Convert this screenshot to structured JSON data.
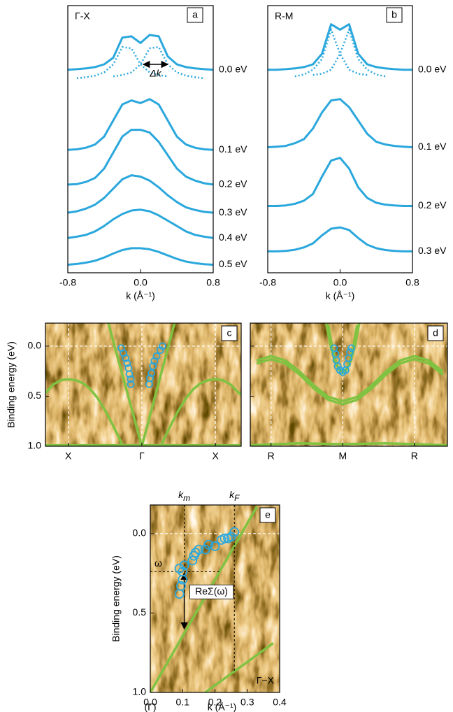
{
  "chart_data": [
    {
      "type": "line",
      "panel": "a",
      "title": "Γ-X",
      "xlabel": "k (Å⁻¹)",
      "xlim": [
        -0.8,
        0.8
      ],
      "xticks": [
        -0.8,
        {
          "value": 0,
          "label": "0.0"
        },
        0.8
      ],
      "ylim": [
        0,
        10
      ],
      "x": [
        -0.8,
        -0.7,
        -0.6,
        -0.5,
        -0.4,
        -0.3,
        -0.2,
        -0.1,
        0,
        0.1,
        0.2,
        0.3,
        0.4,
        0.5,
        0.6,
        0.7,
        0.8
      ],
      "series": [
        {
          "name": "0.0 eV",
          "color": "#2aa7dc",
          "values": [
            7.6,
            7.62,
            7.65,
            7.7,
            7.8,
            8.05,
            8.8,
            8.85,
            8.6,
            8.9,
            8.85,
            8.1,
            7.8,
            7.7,
            7.65,
            7.62,
            7.6
          ]
        },
        {
          "name": "0.1 eV",
          "color": "#2aa7dc",
          "values": [
            4.6,
            4.62,
            4.68,
            4.8,
            5.1,
            5.7,
            6.3,
            6.45,
            6.35,
            6.5,
            6.3,
            5.7,
            5.1,
            4.8,
            4.68,
            4.62,
            4.6
          ]
        },
        {
          "name": "0.2 eV",
          "color": "#2aa7dc",
          "values": [
            3.3,
            3.32,
            3.4,
            3.55,
            3.9,
            4.5,
            5.1,
            5.35,
            5.35,
            5.25,
            4.9,
            4.4,
            3.9,
            3.6,
            3.45,
            3.35,
            3.3
          ]
        },
        {
          "name": "0.3 eV",
          "color": "#2aa7dc",
          "values": [
            2.25,
            2.3,
            2.4,
            2.55,
            2.8,
            3.15,
            3.5,
            3.65,
            3.6,
            3.45,
            3.2,
            2.9,
            2.65,
            2.45,
            2.35,
            2.28,
            2.25
          ]
        },
        {
          "name": "0.4 eV",
          "color": "#2aa7dc",
          "values": [
            1.3,
            1.35,
            1.42,
            1.55,
            1.75,
            2.0,
            2.2,
            2.33,
            2.36,
            2.3,
            2.15,
            1.95,
            1.75,
            1.55,
            1.42,
            1.35,
            1.3
          ]
        },
        {
          "name": "0.5 eV",
          "color": "#2aa7dc",
          "values": [
            0.3,
            0.33,
            0.38,
            0.45,
            0.57,
            0.72,
            0.85,
            0.92,
            0.92,
            0.88,
            0.78,
            0.65,
            0.52,
            0.42,
            0.36,
            0.32,
            0.3
          ]
        }
      ],
      "components": [
        {
          "color": "#2aa7dc",
          "values": [
            null,
            7.28,
            7.32,
            7.38,
            7.5,
            7.8,
            8.45,
            8.4,
            7.8,
            7.5,
            7.4,
            7.35,
            null,
            null,
            null,
            null,
            null
          ]
        },
        {
          "color": "#2aa7dc",
          "values": [
            null,
            null,
            null,
            null,
            null,
            7.35,
            7.4,
            7.5,
            7.8,
            8.4,
            8.45,
            7.8,
            7.5,
            7.38,
            7.32,
            7.28,
            null
          ]
        }
      ],
      "arrow": {
        "label": "Δk",
        "x": [
          0.03,
          0.3
        ],
        "y": 7.8
      }
    },
    {
      "type": "line",
      "panel": "b",
      "title": "R-M",
      "xlabel": "k (Å⁻¹)",
      "xlim": [
        -0.8,
        0.8
      ],
      "xticks": [
        -0.8,
        {
          "value": 0,
          "label": "0.0"
        },
        0.8
      ],
      "ylim": [
        0,
        10
      ],
      "x": [
        -0.8,
        -0.7,
        -0.6,
        -0.5,
        -0.4,
        -0.3,
        -0.2,
        -0.1,
        0,
        0.1,
        0.2,
        0.3,
        0.4,
        0.5,
        0.6,
        0.7,
        0.8
      ],
      "series": [
        {
          "name": "0.0 eV",
          "color": "#2aa7dc",
          "values": [
            7.6,
            7.6,
            7.62,
            7.65,
            7.7,
            7.8,
            8.2,
            9.3,
            9.1,
            9.3,
            8.2,
            7.8,
            7.7,
            7.65,
            7.62,
            7.6,
            7.6
          ]
        },
        {
          "name": "0.1 eV",
          "color": "#2aa7dc",
          "values": [
            4.7,
            4.72,
            4.75,
            4.85,
            5.0,
            5.4,
            6.0,
            6.45,
            6.5,
            6.2,
            5.7,
            5.2,
            4.9,
            4.8,
            4.75,
            4.72,
            4.7
          ]
        },
        {
          "name": "0.2 eV",
          "color": "#2aa7dc",
          "values": [
            2.5,
            2.5,
            2.52,
            2.58,
            2.7,
            2.95,
            3.6,
            4.2,
            4.3,
            3.9,
            3.2,
            2.8,
            2.62,
            2.55,
            2.52,
            2.5,
            2.5
          ]
        },
        {
          "name": "0.3 eV",
          "color": "#2aa7dc",
          "values": [
            0.8,
            0.8,
            0.82,
            0.86,
            0.95,
            1.1,
            1.4,
            1.65,
            1.7,
            1.6,
            1.3,
            1.05,
            0.92,
            0.85,
            0.82,
            0.8,
            0.8
          ]
        }
      ],
      "components": [
        {
          "color": "#2aa7dc",
          "values": [
            null,
            null,
            null,
            7.35,
            7.42,
            7.6,
            8.0,
            9.1,
            8.2,
            7.6,
            7.45,
            7.4,
            null,
            null,
            null,
            null,
            null
          ]
        },
        {
          "color": "#2aa7dc",
          "values": [
            null,
            null,
            null,
            null,
            null,
            7.4,
            7.45,
            7.6,
            8.2,
            9.1,
            8.0,
            7.6,
            7.42,
            7.35,
            null,
            null,
            null
          ]
        }
      ]
    },
    {
      "type": "map",
      "panel": "c",
      "ylabel": "Binding energy (eV)",
      "xlim": [
        -1.31,
        1.35
      ],
      "xticks": [
        {
          "value": -1,
          "label": "X"
        },
        {
          "value": 0,
          "label": "Γ"
        },
        {
          "value": 1,
          "label": "X"
        }
      ],
      "ylim": [
        -0.23,
        1.0
      ],
      "y_inverted": true,
      "yticks": [
        {
          "value": 0,
          "label": "0.0"
        },
        0.5,
        {
          "value": 1,
          "label": "1.0"
        }
      ],
      "grid": true,
      "lines": [
        {
          "color": "#80c241",
          "x": [
            0,
            -0.455
          ],
          "values": [
            1.0,
            -0.23
          ]
        },
        {
          "color": "#80c241",
          "x": [
            0,
            0.445
          ],
          "values": [
            1.0,
            -0.23
          ]
        },
        {
          "color": "#80c241",
          "x": [
            -1.31,
            -1.2,
            -1.1,
            -1.0,
            -0.9,
            -0.8,
            -0.7,
            -0.6,
            -0.5,
            -0.4,
            -0.3,
            -0.26
          ],
          "values": [
            0.47,
            0.38,
            0.34,
            0.33,
            0.34,
            0.37,
            0.43,
            0.52,
            0.64,
            0.78,
            0.93,
            1.0
          ]
        },
        {
          "color": "#80c241",
          "x": [
            0.26,
            0.3,
            0.4,
            0.5,
            0.6,
            0.7,
            0.8,
            0.9,
            1.0,
            1.1,
            1.2,
            1.35
          ],
          "values": [
            1.0,
            0.93,
            0.78,
            0.64,
            0.52,
            0.43,
            0.37,
            0.34,
            0.33,
            0.34,
            0.38,
            0.49
          ]
        },
        {
          "color": "#80c241",
          "x": [
            -1.31,
            1.35
          ],
          "values": [
            0.99,
            0.99
          ]
        }
      ],
      "points": {
        "color": "#2aa7dc",
        "x": [
          -0.28,
          -0.25,
          -0.22,
          -0.2,
          -0.18,
          -0.17,
          -0.15,
          -0.15,
          0.1,
          0.11,
          0.13,
          0.15,
          0.17,
          0.2,
          0.25,
          0.28
        ],
        "values": [
          0.02,
          0.07,
          0.12,
          0.17,
          0.22,
          0.28,
          0.33,
          0.38,
          0.38,
          0.32,
          0.27,
          0.2,
          0.15,
          0.1,
          0.04,
          0.0
        ]
      }
    },
    {
      "type": "map",
      "panel": "d",
      "xlim": [
        -1.29,
        1.46
      ],
      "xticks": [
        {
          "value": -1,
          "label": "R"
        },
        {
          "value": 0,
          "label": "M"
        },
        {
          "value": 1,
          "label": "R"
        }
      ],
      "ylim": [
        -0.23,
        1.0
      ],
      "y_inverted": true,
      "yticks": [
        0,
        0.5,
        1
      ],
      "hide_ytick_labels": true,
      "grid": true,
      "lines": [
        {
          "color": "#80c241",
          "x": [
            -1.2,
            -1.0,
            -0.8,
            -0.6,
            -0.4,
            -0.2,
            0,
            0.2,
            0.4,
            0.6,
            0.8,
            1.0,
            1.2,
            1.4
          ],
          "values": [
            0.143,
            0.1,
            0.143,
            0.255,
            0.395,
            0.507,
            0.55,
            0.507,
            0.395,
            0.255,
            0.143,
            0.1,
            0.143,
            0.255
          ]
        },
        {
          "color": "#80c241",
          "x": [
            -1.2,
            -1.0,
            -0.8,
            -0.6,
            -0.4,
            -0.2,
            0,
            0.2,
            0.4,
            0.6,
            0.8,
            1.0,
            1.2,
            1.4
          ],
          "values": [
            0.173,
            0.13,
            0.173,
            0.285,
            0.425,
            0.537,
            0.58,
            0.537,
            0.425,
            0.285,
            0.173,
            0.13,
            0.173,
            0.285
          ]
        },
        {
          "color": "#80c241",
          "x": [
            -0.2,
            -0.15,
            -0.1,
            -0.05,
            0,
            0.05,
            0.1,
            0.15,
            0.2
          ],
          "values": [
            -0.21,
            0.0,
            0.15,
            0.24,
            0.27,
            0.24,
            0.15,
            0.0,
            -0.21
          ]
        },
        {
          "color": "#80c241",
          "x": [
            -0.23,
            -0.17,
            -0.11,
            -0.05,
            0,
            0.05,
            0.11,
            0.17,
            0.23
          ],
          "values": [
            -0.23,
            0.0,
            0.15,
            0.23,
            0.25,
            0.23,
            0.15,
            0.0,
            -0.23
          ]
        },
        {
          "color": "#80c241",
          "x": [
            -1.29,
            -0.6,
            0,
            0.6,
            1.46
          ],
          "values": [
            0.99,
            0.97,
            0.98,
            0.97,
            0.99
          ]
        }
      ],
      "points": {
        "color": "#2aa7dc",
        "x": [
          -0.12,
          -0.1,
          -0.09,
          -0.07,
          -0.04,
          0,
          0.04,
          0.06,
          0.08,
          0.1,
          0.12
        ],
        "values": [
          0.02,
          0.08,
          0.14,
          0.2,
          0.24,
          0.26,
          0.24,
          0.18,
          0.12,
          0.06,
          0.02
        ]
      }
    },
    {
      "type": "scatter",
      "panel": "e",
      "ylabel": "Binding energy (eV)",
      "xlabel": "k (Å⁻¹)",
      "xnote": "(Γ)",
      "note": "Γ−X",
      "xlim": [
        0,
        0.4
      ],
      "xticks": [
        {
          "value": 0,
          "label": "0.0"
        },
        0.1,
        0.2,
        0.3,
        0.4
      ],
      "ylim": [
        -0.18,
        1.0
      ],
      "y_inverted": true,
      "yticks": [
        {
          "value": 0,
          "label": "0.0"
        },
        0.5,
        {
          "value": 1,
          "label": "1.0"
        }
      ],
      "grid": true,
      "markers": [
        {
          "label": "k",
          "sub": "m",
          "value": 0.105
        },
        {
          "label": "k",
          "sub": "F",
          "value": 0.26
        }
      ],
      "omega": {
        "label": "ω",
        "value": 0.24
      },
      "arrow": {
        "label": "ReΣ(ω)",
        "to": 0.6
      },
      "lines": [
        {
          "color": "#80c241",
          "x": [
            0,
            0.33
          ],
          "values": [
            1.0,
            -0.17
          ]
        },
        {
          "color": "#80c241",
          "x": [
            0.17,
            0.38
          ],
          "values": [
            1.0,
            0.69
          ]
        }
      ],
      "points": {
        "color": "#2aa7dc",
        "x": [
          0.09,
          0.095,
          0.1,
          0.09,
          0.1,
          0.105,
          0.13,
          0.135,
          0.14,
          0.15,
          0.17,
          0.18,
          0.2,
          0.22,
          0.23,
          0.24,
          0.25,
          0.26
        ],
        "values": [
          0.38,
          0.33,
          0.29,
          0.22,
          0.24,
          0.2,
          0.17,
          0.14,
          0.12,
          0.1,
          0.1,
          0.07,
          0.08,
          0.04,
          0.03,
          0.03,
          0.02,
          -0.01
        ]
      }
    }
  ]
}
